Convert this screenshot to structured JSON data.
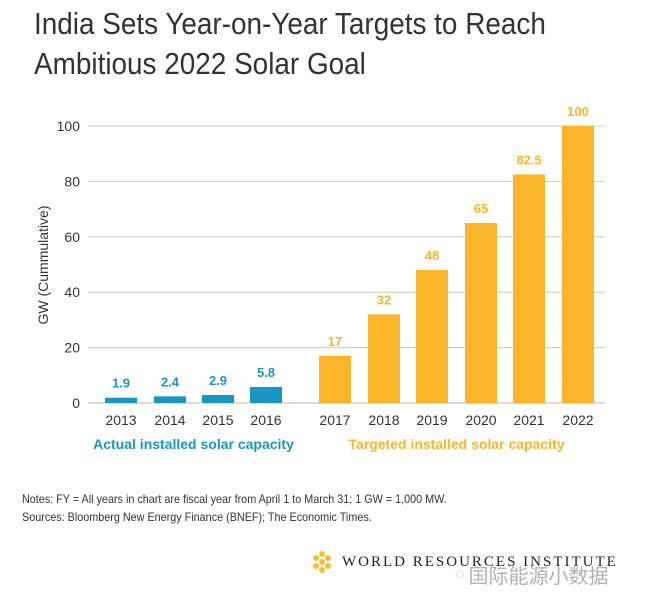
{
  "chart_data": {
    "type": "bar",
    "title": "India Sets Year-on-Year Targets to Reach Ambitious 2022 Solar Goal",
    "title_lines": [
      "India Sets Year-on-Year Targets to Reach",
      "Ambitious 2022 Solar Goal"
    ],
    "ylabel": "GW (Cummulative)",
    "xlabel": "",
    "ylim": [
      0,
      100
    ],
    "yticks": [
      0,
      20,
      40,
      60,
      80,
      100
    ],
    "grid": true,
    "series": [
      {
        "name": "Actual installed solar capacity",
        "color": "#1a96c4",
        "categories": [
          "2013",
          "2014",
          "2015",
          "2016"
        ],
        "values": [
          1.9,
          2.4,
          2.9,
          5.8
        ],
        "labels": [
          "1.9",
          "2.4",
          "2.9",
          "5.8"
        ]
      },
      {
        "name": "Targeted installed solar capacity",
        "color": "#fbb52a",
        "categories": [
          "2017",
          "2018",
          "2019",
          "2020",
          "2021",
          "2022"
        ],
        "values": [
          17,
          32,
          48,
          65,
          82.5,
          100
        ],
        "labels": [
          "17",
          "32",
          "48",
          "65",
          "82.5",
          "100"
        ]
      }
    ]
  },
  "notes": "Notes: FY = All years in chart are fiscal year from April 1 to March 31; 1 GW = 1,000 MW.",
  "sources": "Sources: Bloomberg New Energy Finance (BNEF); The Economic Times.",
  "logo": {
    "text": "WORLD RESOURCES INSTITUTE",
    "icon": "wri-hexagon-logo-icon",
    "color": "#f3c23a"
  },
  "watermark": {
    "text": "国际能源小数据",
    "icon": "wechat-icon"
  }
}
